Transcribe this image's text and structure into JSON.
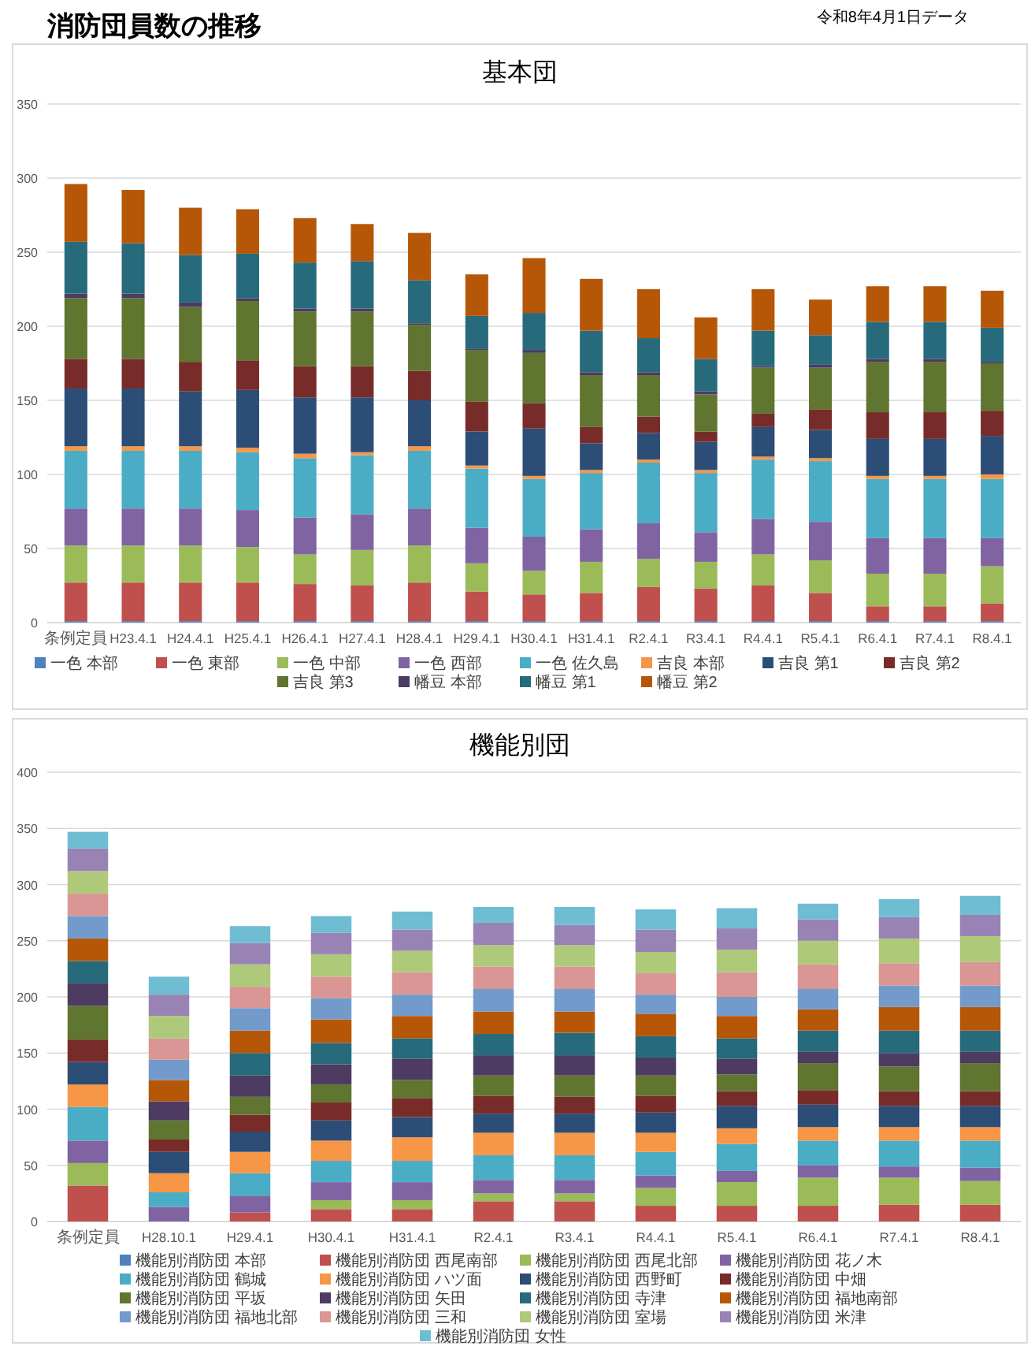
{
  "chart_data": [
    {
      "type": "bar",
      "title": "基本団",
      "annotations": [
        "消防団員数の推移",
        "令和8年4月1日データ"
      ],
      "stacked": true,
      "grid": "y",
      "legend": "bottom",
      "ylim": [
        0,
        350
      ],
      "yticks": [
        0,
        50,
        100,
        150,
        200,
        250,
        300,
        350
      ],
      "categories": [
        "条例定員",
        "H23.4.1",
        "H24.4.1",
        "H25.4.1",
        "H26.4.1",
        "H27.4.1",
        "H28.4.1",
        "H29.4.1",
        "H30.4.1",
        "H31.4.1",
        "R2.4.1",
        "R3.4.1",
        "R4.4.1",
        "R5.4.1",
        "R6.4.1",
        "R7.4.1",
        "R8.4.1"
      ],
      "series": [
        {
          "name": "一色 本部",
          "color": "#4f81bd",
          "values": [
            1,
            1,
            1,
            1,
            1,
            1,
            1,
            1,
            1,
            1,
            1,
            1,
            1,
            1,
            1,
            1,
            1
          ]
        },
        {
          "name": "一色 東部",
          "color": "#c0504d",
          "values": [
            26,
            26,
            26,
            26,
            25,
            24,
            26,
            20,
            18,
            19,
            23,
            22,
            24,
            19,
            10,
            10,
            12
          ]
        },
        {
          "name": "一色 中部",
          "color": "#9bbb59",
          "values": [
            25,
            25,
            25,
            24,
            20,
            24,
            25,
            19,
            16,
            21,
            19,
            18,
            21,
            22,
            22,
            22,
            25
          ]
        },
        {
          "name": "一色 西部",
          "color": "#8064a2",
          "values": [
            25,
            25,
            25,
            25,
            25,
            24,
            25,
            24,
            23,
            22,
            24,
            20,
            24,
            26,
            24,
            24,
            19
          ]
        },
        {
          "name": "一色 佐久島",
          "color": "#4bacc6",
          "values": [
            39,
            39,
            39,
            39,
            40,
            40,
            39,
            40,
            39,
            38,
            41,
            40,
            40,
            41,
            40,
            40,
            40
          ]
        },
        {
          "name": "吉良 本部",
          "color": "#f79646",
          "values": [
            3,
            3,
            3,
            3,
            3,
            2,
            3,
            2,
            2,
            2,
            2,
            2,
            2,
            2,
            2,
            2,
            3
          ]
        },
        {
          "name": "吉良 第1",
          "color": "#2c4d75",
          "values": [
            39,
            39,
            37,
            39,
            38,
            37,
            31,
            23,
            32,
            18,
            18,
            19,
            20,
            19,
            25,
            25,
            26
          ]
        },
        {
          "name": "吉良 第2",
          "color": "#772c2a",
          "values": [
            20,
            20,
            20,
            20,
            21,
            21,
            20,
            20,
            17,
            11,
            11,
            7,
            9,
            14,
            18,
            18,
            17
          ]
        },
        {
          "name": "吉良 第3",
          "color": "#5f7530",
          "values": [
            41,
            41,
            37,
            40,
            37,
            37,
            31,
            35,
            34,
            35,
            28,
            25,
            31,
            28,
            34,
            34,
            32
          ]
        },
        {
          "name": "幡豆 本部",
          "color": "#4d3b62",
          "values": [
            3,
            3,
            3,
            2,
            2,
            2,
            1,
            1,
            2,
            2,
            2,
            2,
            1,
            2,
            2,
            2,
            1
          ]
        },
        {
          "name": "幡豆 第1",
          "color": "#276a7c",
          "values": [
            35,
            34,
            32,
            30,
            31,
            32,
            29,
            22,
            25,
            28,
            23,
            22,
            24,
            20,
            25,
            25,
            23
          ]
        },
        {
          "name": "幡豆 第2",
          "color": "#b65708",
          "values": [
            39,
            36,
            32,
            30,
            30,
            25,
            32,
            28,
            37,
            35,
            33,
            28,
            28,
            24,
            24,
            24,
            25
          ]
        }
      ]
    },
    {
      "type": "bar",
      "title": "機能別団",
      "stacked": true,
      "grid": "y",
      "legend": "bottom",
      "ylim": [
        0,
        400
      ],
      "yticks": [
        0,
        50,
        100,
        150,
        200,
        250,
        300,
        350,
        400
      ],
      "categories": [
        "条例定員",
        "H28.10.1",
        "H29.4.1",
        "H30.4.1",
        "H31.4.1",
        "R2.4.1",
        "R3.4.1",
        "R4.4.1",
        "R5.4.1",
        "R6.4.1",
        "R7.4.1",
        "R8.4.1"
      ],
      "series": [
        {
          "name": "機能別消防団 本部",
          "color": "#4f81bd",
          "values": [
            0,
            0,
            0,
            0,
            0,
            0,
            0,
            0,
            0,
            0,
            0,
            0
          ]
        },
        {
          "name": "機能別消防団 西尾南部",
          "color": "#c0504d",
          "values": [
            32,
            0,
            8,
            11,
            11,
            18,
            18,
            14,
            14,
            14,
            15,
            15
          ]
        },
        {
          "name": "機能別消防団 西尾北部",
          "color": "#9bbb59",
          "values": [
            20,
            0,
            0,
            8,
            8,
            7,
            7,
            16,
            21,
            25,
            24,
            21
          ]
        },
        {
          "name": "機能別消防団 花ノ木",
          "color": "#8064a2",
          "values": [
            20,
            13,
            15,
            16,
            16,
            12,
            12,
            11,
            10,
            11,
            10,
            12
          ]
        },
        {
          "name": "機能別消防団 鶴城",
          "color": "#4bacc6",
          "values": [
            30,
            13,
            20,
            19,
            19,
            22,
            22,
            21,
            24,
            22,
            23,
            24
          ]
        },
        {
          "name": "機能別消防団 ハツ面",
          "color": "#f79646",
          "values": [
            20,
            17,
            19,
            18,
            21,
            20,
            20,
            17,
            14,
            12,
            12,
            12
          ]
        },
        {
          "name": "機能別消防団 西野町",
          "color": "#2c4d75",
          "values": [
            20,
            19,
            18,
            18,
            18,
            17,
            17,
            18,
            20,
            20,
            19,
            19
          ]
        },
        {
          "name": "機能別消防団 中畑",
          "color": "#772c2a",
          "values": [
            20,
            11,
            15,
            16,
            17,
            16,
            15,
            15,
            13,
            13,
            13,
            13
          ]
        },
        {
          "name": "機能別消防団 平坂",
          "color": "#5f7530",
          "values": [
            30,
            17,
            16,
            16,
            16,
            18,
            19,
            18,
            15,
            24,
            22,
            25
          ]
        },
        {
          "name": "機能別消防団 矢田",
          "color": "#4d3b62",
          "values": [
            20,
            17,
            19,
            18,
            19,
            18,
            18,
            16,
            14,
            10,
            12,
            10
          ]
        },
        {
          "name": "機能別消防団 寺津",
          "color": "#276a7c",
          "values": [
            20,
            0,
            20,
            19,
            18,
            19,
            20,
            19,
            18,
            19,
            20,
            19
          ]
        },
        {
          "name": "機能別消防団 福地南部",
          "color": "#b65708",
          "values": [
            20,
            19,
            20,
            21,
            20,
            20,
            19,
            20,
            20,
            19,
            21,
            21
          ]
        },
        {
          "name": "機能別消防団 福地北部",
          "color": "#729aca",
          "values": [
            20,
            18,
            20,
            19,
            19,
            20,
            20,
            17,
            17,
            18,
            19,
            19
          ]
        },
        {
          "name": "機能別消防団 三和",
          "color": "#d99694",
          "values": [
            20,
            19,
            19,
            19,
            20,
            20,
            20,
            19,
            22,
            22,
            20,
            21
          ]
        },
        {
          "name": "機能別消防団 室場",
          "color": "#afc97a",
          "values": [
            20,
            20,
            20,
            20,
            19,
            19,
            19,
            19,
            20,
            21,
            22,
            23
          ]
        },
        {
          "name": "機能別消防団 米津",
          "color": "#9983b5",
          "values": [
            20,
            19,
            19,
            19,
            19,
            20,
            18,
            20,
            19,
            19,
            19,
            19
          ]
        },
        {
          "name": "機能別消防団 女性",
          "color": "#6fbdd3",
          "values": [
            15,
            16,
            15,
            15,
            16,
            14,
            16,
            18,
            18,
            14,
            16,
            17
          ]
        }
      ]
    }
  ]
}
